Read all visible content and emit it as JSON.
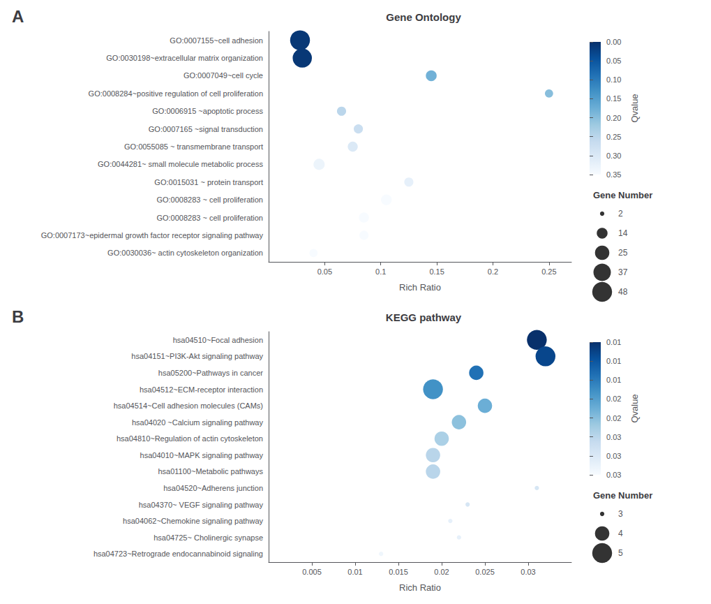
{
  "chart_data": [
    {
      "type": "scatter",
      "panel_label": "A",
      "title": "Gene Ontology",
      "xlabel": "Rich Ratio",
      "categories": [
        "GO:0007155~cell adhesion",
        "GO:0030198~extracellular matrix organization",
        "GO:0007049~cell cycle",
        "GO:0008284~positive regulation of cell proliferation",
        "GO:0006915 ~apoptotic process",
        "GO:0007165 ~signal transduction",
        "GO:0055085 ~ transmembrane transport",
        "GO:0044281~ small molecule metabolic process",
        "GO:0015031 ~ protein transport",
        "GO:0008283 ~ cell proliferation",
        "GO:0008283 ~ cell proliferation",
        "GO:0007173~epidermal growth factor receptor signaling pathway",
        "GO:0030036~ actin cytoskeleton organization"
      ],
      "values": [
        0.028,
        0.03,
        0.145,
        0.25,
        0.065,
        0.08,
        0.075,
        0.045,
        0.125,
        0.105,
        0.085,
        0.085,
        0.04
      ],
      "qvalue": [
        0.01,
        0.01,
        0.18,
        0.2,
        0.25,
        0.27,
        0.3,
        0.33,
        0.32,
        0.35,
        0.35,
        0.35,
        0.35
      ],
      "gene_number": [
        48,
        45,
        14,
        8,
        10,
        10,
        12,
        15,
        10,
        14,
        12,
        10,
        8
      ],
      "colorbar_label": "Qvalue",
      "colorbar_range": [
        0.0,
        0.35
      ],
      "colorbar_ticks": [
        {
          "value": 0.0,
          "label": "0.00"
        },
        0.05,
        {
          "value": 0.1,
          "label": "0.10"
        },
        0.15,
        {
          "value": 0.2,
          "label": "0.20"
        },
        0.25,
        {
          "value": 0.3,
          "label": "0.30"
        },
        0.35
      ],
      "size_legend_title": "Gene Number",
      "size_legend": [
        2,
        14,
        25,
        37,
        48
      ],
      "xlim": [
        0.0,
        0.27
      ],
      "xticks": [
        0.05,
        0.1,
        0.15,
        0.2,
        0.25
      ],
      "grid": false
    },
    {
      "type": "scatter",
      "panel_label": "B",
      "title": "KEGG pathway",
      "xlabel": "Rich Ratio",
      "categories": [
        "hsa04510~Focal adhesion",
        "hsa04151~PI3K-Akt signaling pathway",
        "hsa05200~Pathways in cancer",
        "hsa04512~ECM-receptor interaction",
        "hsa04514~Cell adhesion molecules (CAMs)",
        "hsa04020 ~Calcium signaling pathway",
        "hsa04810~Regulation of actin cytoskeleton",
        "hsa04010~MAPK signaling pathway",
        "hsa01100~Metabolic pathways",
        "hsa04520~Adherens junction",
        "hsa04370~ VEGF signaling pathway",
        "hsa04062~Chemokine signaling pathway",
        "hsa04725~ Cholinergic synapse",
        "hsa04723~Retrograde endocannabinoid signaling"
      ],
      "values": [
        0.031,
        0.032,
        0.024,
        0.019,
        0.025,
        0.022,
        0.02,
        0.019,
        0.019,
        0.031,
        0.023,
        0.021,
        0.022,
        0.013
      ],
      "qvalue": [
        0.008,
        0.01,
        0.014,
        0.017,
        0.02,
        0.022,
        0.024,
        0.025,
        0.025,
        0.028,
        0.028,
        0.03,
        0.03,
        0.031
      ],
      "gene_number": [
        5,
        5,
        4,
        5,
        4,
        4,
        4,
        4,
        4,
        3,
        3,
        3,
        3,
        3
      ],
      "colorbar_label": "Qvalue",
      "colorbar_range": [
        0.008,
        0.032
      ],
      "colorbar_ticks": [
        {
          "value": 0.008,
          "label": "0.01"
        },
        {
          "value": 0.011428571428571429,
          "label": "0.01"
        },
        {
          "value": 0.014857142857142857,
          "label": "0.01"
        },
        {
          "value": 0.018285714285714287,
          "label": "0.02"
        },
        {
          "value": 0.021714285714285714,
          "label": "0.02"
        },
        {
          "value": 0.025142857142857144,
          "label": "0.03"
        },
        {
          "value": 0.028571428571428574,
          "label": "0.03"
        },
        {
          "value": 0.032,
          "label": "0.03"
        }
      ],
      "size_legend_title": "Gene Number",
      "size_legend": [
        3,
        4,
        5
      ],
      "xlim": [
        0.0,
        0.035
      ],
      "xticks": [
        0.005,
        0.01,
        0.015,
        0.02,
        0.025,
        0.03
      ],
      "grid": false
    }
  ]
}
